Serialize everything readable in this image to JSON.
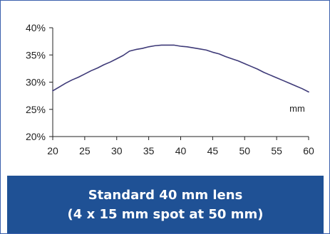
{
  "chart_data": {
    "type": "line",
    "x": [
      20,
      21,
      22,
      23,
      24,
      25,
      26,
      27,
      28,
      29,
      30,
      31,
      32,
      33,
      34,
      35,
      36,
      37,
      38,
      39,
      40,
      41,
      42,
      43,
      44,
      45,
      46,
      47,
      48,
      49,
      50,
      51,
      52,
      53,
      54,
      55,
      56,
      57,
      58,
      59,
      60
    ],
    "series": [
      {
        "values": [
          28.4,
          29.1,
          29.8,
          30.4,
          30.9,
          31.5,
          32.1,
          32.6,
          33.2,
          33.7,
          34.3,
          34.9,
          35.7,
          36.0,
          36.2,
          36.5,
          36.7,
          36.8,
          36.8,
          36.8,
          36.6,
          36.5,
          36.3,
          36.1,
          35.9,
          35.5,
          35.2,
          34.7,
          34.3,
          33.9,
          33.4,
          32.9,
          32.4,
          31.8,
          31.3,
          30.8,
          30.3,
          29.8,
          29.3,
          28.8,
          28.2
        ],
        "color": "#3e3a78"
      }
    ],
    "xlabel": "mm",
    "ylabel": "",
    "xlim": [
      20,
      60
    ],
    "ylim": [
      20,
      40
    ],
    "xticks": [
      "20",
      "25",
      "30",
      "35",
      "40",
      "45",
      "50",
      "55",
      "60"
    ],
    "yticks": [
      "40%",
      "35%",
      "30%",
      "25%",
      "20%"
    ],
    "grid": false,
    "legend": "none"
  },
  "caption": {
    "line1": "Standard 40 mm lens",
    "line2": "(4 x 15 mm spot at 50 mm)"
  },
  "colors": {
    "frame_border": "#3c60ad",
    "caption_bg": "#1f5195",
    "caption_text": "#ffffff",
    "axis": "#222222"
  }
}
